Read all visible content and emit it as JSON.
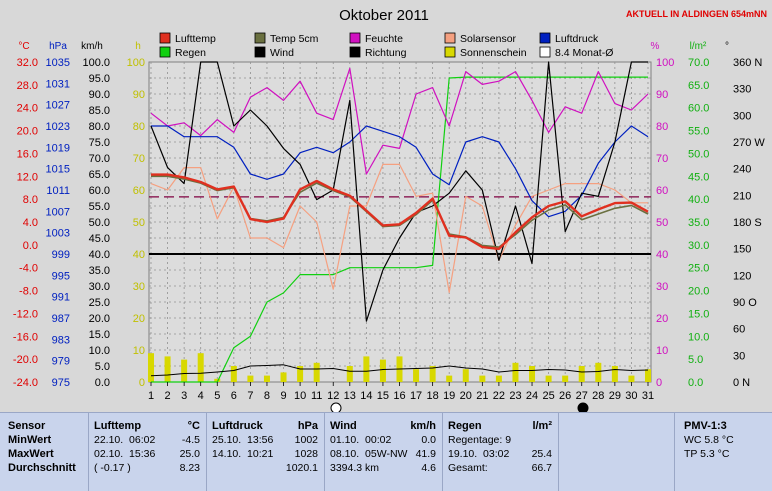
{
  "title": "Oktober 2011",
  "site_label": "AKTUELL IN ALDINGEN 654mNN",
  "colors": {
    "lufttemp": "#e03020",
    "temp5cm": "#6a7040",
    "feuchte": "#d010c0",
    "wind": "#000000",
    "richtung": "#000000",
    "solar": "#f5a080",
    "sonne": "#d8d800",
    "regen": "#10d010",
    "luftdruck": "#0020c0",
    "monat": "#800040"
  },
  "axes": {
    "celsius": {
      "unit": "°C",
      "min": -24,
      "max": 32,
      "ticks": [
        "32.0",
        "28.0",
        "24.0",
        "20.0",
        "16.0",
        "12.0",
        "8.0",
        "4.0",
        "0.0",
        "-4.0",
        "-8.0",
        "-12.0",
        "-16.0",
        "-20.0",
        "-24.0"
      ]
    },
    "hpa": {
      "unit": "hPa",
      "ticks": [
        "1035",
        "1031",
        "1027",
        "1023",
        "1019",
        "1015",
        "1011",
        "1007",
        "1003",
        "999",
        "995",
        "991",
        "987",
        "983",
        "979",
        "975"
      ]
    },
    "kmh": {
      "unit": "km/h",
      "min": 0,
      "max": 100,
      "ticks": [
        "100.0",
        "95.0",
        "90.0",
        "85.0",
        "80.0",
        "75.0",
        "70.0",
        "65.0",
        "60.0",
        "55.0",
        "50.0",
        "45.0",
        "40.0",
        "35.0",
        "30.0",
        "25.0",
        "20.0",
        "15.0",
        "10.0",
        "5.0",
        "0.0"
      ]
    },
    "hours": {
      "unit": "h",
      "ticks": [
        "100",
        "90",
        "80",
        "70",
        "60",
        "50",
        "40",
        "30",
        "20",
        "10",
        "0"
      ]
    },
    "percent": {
      "unit": "%",
      "ticks": [
        "100",
        "90",
        "80",
        "70",
        "60",
        "50",
        "40",
        "30",
        "20",
        "10",
        "0"
      ]
    },
    "rain": {
      "unit": "l/m²",
      "ticks": [
        "70.0",
        "65.0",
        "60.0",
        "55.0",
        "50.0",
        "45.0",
        "40.0",
        "35.0",
        "30.0",
        "25.0",
        "20.0",
        "15.0",
        "10.0",
        "5.0",
        "0.0"
      ]
    },
    "direction": {
      "unit": "°",
      "ticks": [
        "360 N",
        "330",
        "300",
        "270 W",
        "240",
        "210",
        "180 S",
        "150",
        "120",
        "90 O",
        "60",
        "30",
        "0 N"
      ]
    },
    "days": [
      "1",
      "2",
      "3",
      "4",
      "5",
      "6",
      "7",
      "8",
      "9",
      "10",
      "11",
      "12",
      "13",
      "14",
      "15",
      "16",
      "17",
      "18",
      "19",
      "20",
      "21",
      "22",
      "23",
      "24",
      "25",
      "26",
      "27",
      "28",
      "29",
      "30",
      "31"
    ]
  },
  "legend": [
    {
      "label": "Lufttemp",
      "key": "lufttemp"
    },
    {
      "label": "Temp 5cm",
      "key": "temp5cm"
    },
    {
      "label": "Feuchte",
      "key": "feuchte"
    },
    {
      "label": "Solarsensor",
      "key": "solar"
    },
    {
      "label": "Luftdruck",
      "key": "luftdruck"
    },
    {
      "label": "Regen",
      "key": "regen"
    },
    {
      "label": "Wind",
      "key": "wind"
    },
    {
      "label": "Richtung",
      "key": "richtung"
    },
    {
      "label": "Sonnenschein",
      "key": "sonne"
    },
    {
      "label": "8.4 Monat-Ø",
      "key": "monat"
    }
  ],
  "chart_data": {
    "type": "line",
    "x": [
      1,
      2,
      3,
      4,
      5,
      6,
      7,
      8,
      9,
      10,
      11,
      12,
      13,
      14,
      15,
      16,
      17,
      18,
      19,
      20,
      21,
      22,
      23,
      24,
      25,
      26,
      27,
      28,
      29,
      30,
      31
    ],
    "reference_lines": {
      "monthly_mean_temp_c": 8.4,
      "wind_kmh": 40
    },
    "series": [
      {
        "name": "Lufttemp",
        "axis": "celsius",
        "values": [
          12.3,
          12.3,
          11.8,
          11.0,
          9.7,
          10.2,
          4.5,
          4.0,
          4.6,
          9.7,
          11.2,
          9.7,
          8.6,
          6.0,
          3.4,
          3.6,
          5.6,
          8.1,
          1.6,
          1.3,
          -0.4,
          -0.7,
          2.2,
          4.8,
          6.8,
          7.6,
          5.0,
          6.2,
          7.3,
          7.4,
          5.8
        ]
      },
      {
        "name": "Temp 5cm",
        "axis": "celsius",
        "values": [
          12.0,
          12.0,
          11.5,
          10.8,
          9.5,
          10.0,
          4.6,
          4.2,
          4.8,
          9.2,
          10.8,
          9.5,
          8.4,
          5.8,
          3.2,
          3.4,
          5.3,
          7.8,
          1.9,
          1.4,
          -0.1,
          -0.4,
          1.8,
          4.3,
          6.1,
          7.0,
          4.4,
          5.4,
          6.4,
          6.9,
          5.4
        ]
      },
      {
        "name": "Feuchte",
        "axis": "percent",
        "values": [
          84,
          80,
          81,
          77,
          82,
          78,
          89,
          92,
          88,
          94,
          84,
          82,
          98,
          65,
          74,
          73,
          90,
          92,
          80,
          97,
          93,
          94,
          97,
          88,
          78,
          86,
          84,
          97,
          87,
          85,
          90
        ]
      },
      {
        "name": "Solarsensor",
        "axis": "percent",
        "values": [
          62,
          60,
          67,
          67,
          51,
          61,
          45,
          45,
          42,
          55,
          50,
          29,
          55,
          55,
          68,
          68,
          58,
          59,
          28,
          58,
          55,
          38,
          49,
          58,
          60,
          62,
          62,
          62,
          60,
          56,
          56
        ]
      },
      {
        "name": "Luftdruck",
        "axis": "hpa",
        "values": [
          1023,
          1023,
          1021,
          1021,
          1021,
          1019,
          1014,
          1013,
          1014,
          1018,
          1019,
          1018,
          1020,
          1023,
          1022,
          1021,
          1019,
          1014,
          1012,
          1020,
          1021,
          1020,
          1015,
          1009,
          1006,
          1007,
          1010,
          1016,
          1020,
          1023,
          1021
        ]
      },
      {
        "name": "Wind",
        "axis": "kmh",
        "values": [
          80,
          67,
          62,
          100,
          100,
          80,
          85,
          80,
          73,
          68,
          57,
          60,
          88,
          19,
          35,
          45,
          53,
          55,
          59,
          66,
          60,
          38,
          55,
          37,
          100,
          47,
          59,
          58,
          75,
          100,
          100
        ]
      },
      {
        "name": "Regen",
        "axis": "rain",
        "values": [
          0,
          0,
          0,
          0,
          0,
          7.5,
          10.0,
          17.5,
          19.5,
          23.5,
          23.5,
          23.5,
          25.0,
          25.0,
          25.0,
          25.0,
          25.0,
          25.5,
          66.5,
          66.7,
          66.7,
          66.7,
          66.7,
          66.7,
          66.7,
          66.7,
          66.7,
          66.7,
          66.7,
          66.7,
          66.7
        ]
      },
      {
        "name": "Sonnenschein",
        "axis": "hours",
        "values": [
          9,
          8,
          7,
          9,
          1,
          5,
          2,
          2,
          3,
          5,
          6,
          0,
          5,
          8,
          7,
          8,
          4,
          5,
          2,
          4,
          2,
          2,
          6,
          5,
          2,
          2,
          5,
          6,
          5,
          2,
          4
        ]
      },
      {
        "name": "Richtung",
        "axis": "direction",
        "values": [
          45,
          60,
          90,
          95,
          120,
          150,
          240,
          250,
          265,
          180,
          180,
          190,
          135,
          135,
          170,
          180,
          190,
          200,
          240,
          200,
          180,
          120,
          150,
          150,
          170,
          160,
          120,
          130,
          170,
          150,
          160
        ]
      }
    ]
  },
  "footer": {
    "sensor": {
      "header": "Sensor",
      "rows": [
        "MinWert",
        "MaxWert",
        "Durchschnitt"
      ]
    },
    "lufttemp": {
      "header": "Lufttemp",
      "unit": "°C",
      "rows": [
        [
          "22.10.",
          "06:02",
          "-4.5"
        ],
        [
          "02.10.",
          "15:36",
          "25.0"
        ],
        [
          "( -0.17 )",
          "",
          "8.23"
        ]
      ]
    },
    "luftdruck": {
      "header": "Luftdruck",
      "unit": "hPa",
      "rows": [
        [
          "25.10.",
          "13:56",
          "1002"
        ],
        [
          "14.10.",
          "10:21",
          "1028"
        ],
        [
          "",
          "",
          "1020.1"
        ]
      ]
    },
    "wind": {
      "header": "Wind",
      "unit": "km/h",
      "rows": [
        [
          "01.10.",
          "00:02",
          "0.0"
        ],
        [
          "08.10.",
          "05W-NW",
          "41.9"
        ],
        [
          "3394.3 km",
          "",
          "4.6"
        ]
      ]
    },
    "regen": {
      "header": "Regen",
      "unit": "l/m²",
      "rows": [
        [
          "Regentage: 9",
          "",
          ""
        ],
        [
          "19.10.",
          "03:02",
          "25.4"
        ],
        [
          "Gesamt:",
          "",
          "66.7"
        ]
      ]
    },
    "pmv": {
      "header": "PMV-1:3",
      "rows": [
        "WC 5.8 °C",
        "TP 5.3 °C"
      ]
    }
  }
}
